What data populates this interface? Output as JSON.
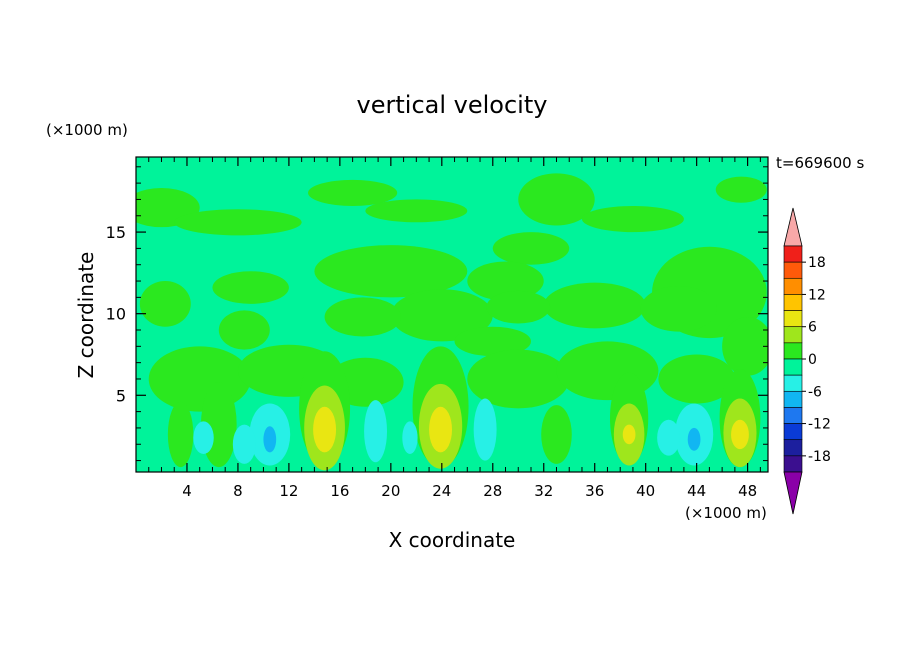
{
  "chart_data": {
    "type": "heatmap",
    "title": "vertical velocity",
    "xlabel": "X coordinate",
    "ylabel": "Z coordinate",
    "x_unit": "(×1000 m)",
    "y_unit": "(×1000 m)",
    "time_label": "t=669600 s",
    "xlim": [
      0,
      49.6
    ],
    "ylim": [
      0.3,
      19.6
    ],
    "x_ticks": [
      4,
      8,
      12,
      16,
      20,
      24,
      28,
      32,
      36,
      40,
      44,
      48
    ],
    "y_ticks": [
      5,
      10,
      15
    ],
    "colorbar": {
      "ticks": [
        18,
        12,
        6,
        0,
        -6,
        -12,
        -18
      ],
      "levels": [
        -21,
        -18,
        -15,
        -12,
        -9,
        -6,
        -3,
        0,
        3,
        6,
        9,
        12,
        15,
        18,
        21
      ],
      "colors": [
        "#8a00a8",
        "#3b0f8f",
        "#1c1f9e",
        "#0a3bd6",
        "#1e78f0",
        "#11b6f2",
        "#27f0e6",
        "#00f39a",
        "#2be81f",
        "#9fe61c",
        "#e9e612",
        "#ffc400",
        "#ff8e00",
        "#ff5a0a",
        "#f0201a",
        "#f8a8a8"
      ],
      "min_extend": "#8a00a8",
      "max_extend": "#f8a8a8"
    },
    "background_value_color": "#00f39a",
    "updrafts_peak": [
      {
        "x": 14.8,
        "z": 2.8,
        "value": 7
      },
      {
        "x": 23.9,
        "z": 2.9,
        "value": 7
      },
      {
        "x": 38.7,
        "z": 2.6,
        "value": 5
      },
      {
        "x": 47.4,
        "z": 2.6,
        "value": 6
      }
    ],
    "downdrafts_peak": [
      {
        "x": 10.5,
        "z": 2.5,
        "value": -5
      },
      {
        "x": 18.8,
        "z": 2.8,
        "value": -3
      },
      {
        "x": 27.4,
        "z": 2.8,
        "value": -3
      },
      {
        "x": 43.8,
        "z": 2.6,
        "value": -5
      }
    ]
  }
}
